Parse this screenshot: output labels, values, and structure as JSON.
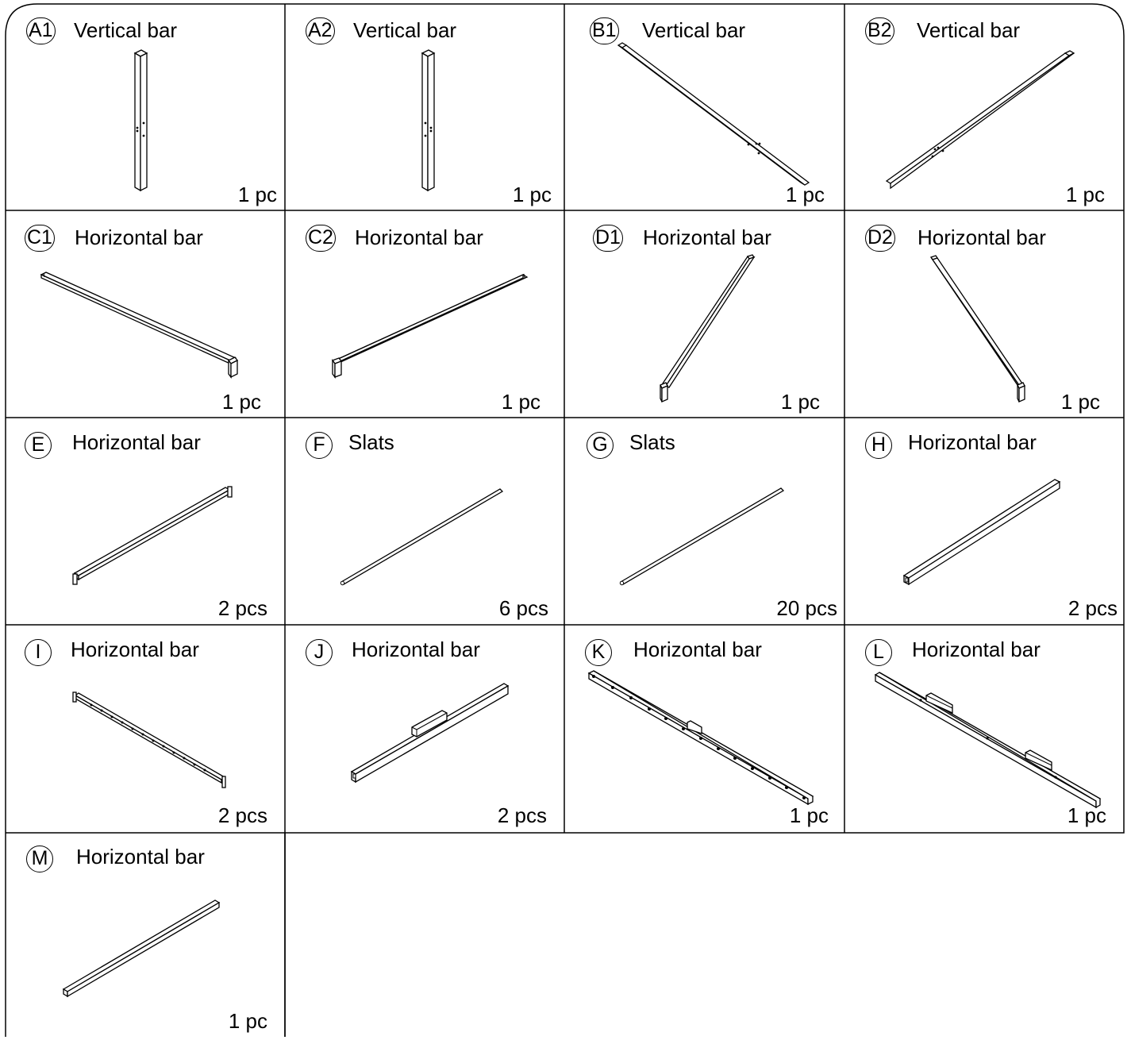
{
  "parts": [
    {
      "id": "A1",
      "name": "Vertical bar",
      "qty": "1 pc",
      "icon": "vertical-post"
    },
    {
      "id": "A2",
      "name": "Vertical bar",
      "qty": "1 pc",
      "icon": "vertical-post"
    },
    {
      "id": "B1",
      "name": "Vertical bar",
      "qty": "1 pc",
      "icon": "diagonal-post"
    },
    {
      "id": "B2",
      "name": "Vertical bar",
      "qty": "1 pc",
      "icon": "diagonal-post"
    },
    {
      "id": "C1",
      "name": "Horizontal bar",
      "qty": "1 pc",
      "icon": "rail-with-end-bracket"
    },
    {
      "id": "C2",
      "name": "Horizontal bar",
      "qty": "1 pc",
      "icon": "rail-with-end-bracket"
    },
    {
      "id": "D1",
      "name": "Horizontal bar",
      "qty": "1 pc",
      "icon": "rail-with-end-bracket"
    },
    {
      "id": "D2",
      "name": "Horizontal bar",
      "qty": "1 pc",
      "icon": "rail-with-end-bracket"
    },
    {
      "id": "E",
      "name": "Horizontal bar",
      "qty": "2 pcs",
      "icon": "bar-with-end-plates"
    },
    {
      "id": "F",
      "name": "Slats",
      "qty": "6 pcs",
      "icon": "slat-rod"
    },
    {
      "id": "G",
      "name": "Slats",
      "qty": "20 pcs",
      "icon": "slat-rod"
    },
    {
      "id": "H",
      "name": "Horizontal bar",
      "qty": "2 pcs",
      "icon": "square-tube-bar"
    },
    {
      "id": "I",
      "name": "Horizontal bar",
      "qty": "2 pcs",
      "icon": "drilled-angle-bar"
    },
    {
      "id": "J",
      "name": "Horizontal bar",
      "qty": "2 pcs",
      "icon": "bar-with-center-bracket"
    },
    {
      "id": "K",
      "name": "Horizontal bar",
      "qty": "1 pc",
      "icon": "drilled-bar-with-bracket"
    },
    {
      "id": "L",
      "name": "Horizontal bar",
      "qty": "1 pc",
      "icon": "bar-with-two-brackets"
    },
    {
      "id": "M",
      "name": "Horizontal bar",
      "qty": "1 pc",
      "icon": "square-tube-bar"
    }
  ]
}
